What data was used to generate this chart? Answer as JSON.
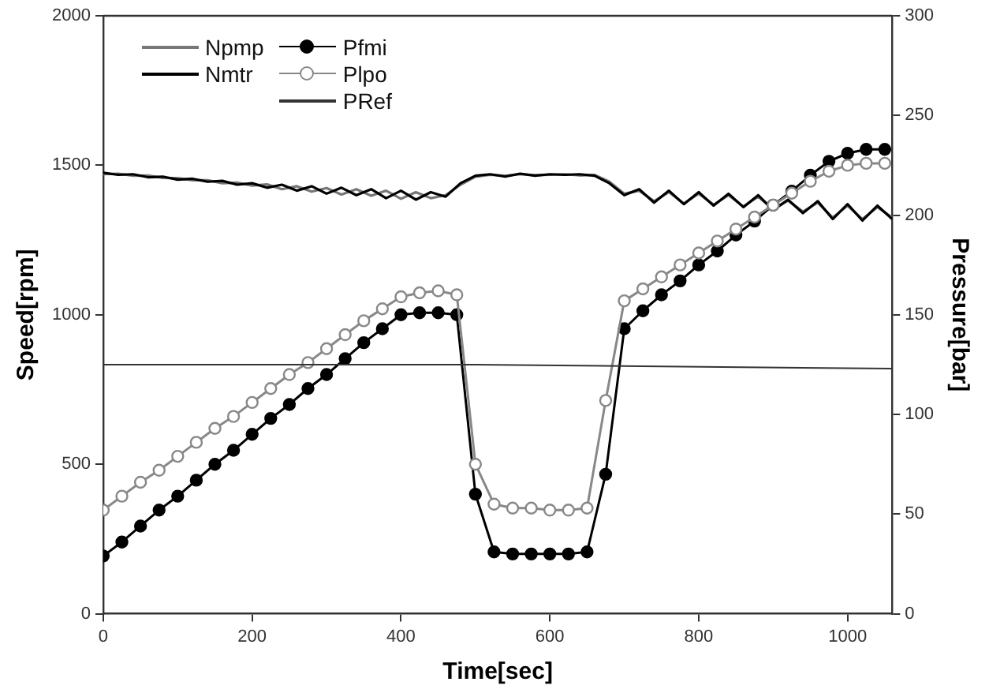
{
  "chart_data": {
    "type": "line",
    "xlabel": "Time[sec]",
    "ylabel": "Speed[rpm]",
    "y2label": "Pressure[bar]",
    "xlim": [
      0,
      1060
    ],
    "xticks": [
      0,
      200,
      400,
      600,
      800,
      1000
    ],
    "ylim": [
      0,
      2000
    ],
    "yticks": [
      0,
      500,
      1000,
      1500,
      2000
    ],
    "y2lim": [
      0,
      300
    ],
    "y2ticks": [
      0,
      50,
      100,
      150,
      200,
      250,
      300
    ],
    "legend": "top left",
    "grid": false,
    "series": [
      {
        "name": "Npmp",
        "color": "#777777",
        "marker": "none",
        "x": [
          0,
          20,
          40,
          60,
          80,
          100,
          120,
          140,
          160,
          180,
          200,
          220,
          240,
          260,
          280,
          300,
          320,
          340,
          360,
          380,
          400,
          420,
          440,
          460,
          480,
          500,
          520,
          540,
          560,
          580,
          600,
          620,
          640,
          660,
          680,
          700,
          720,
          740,
          760,
          780,
          800,
          820,
          840,
          860,
          880,
          900,
          920,
          940,
          960,
          980,
          1000,
          1020,
          1040,
          1060
        ],
        "values": [
          1470,
          1472,
          1465,
          1466,
          1458,
          1457,
          1450,
          1450,
          1440,
          1442,
          1432,
          1436,
          1420,
          1430,
          1412,
          1424,
          1402,
          1420,
          1398,
          1415,
          1388,
          1410,
          1390,
          1400,
          1435,
          1462,
          1468,
          1465,
          1470,
          1467,
          1468,
          1470,
          1466,
          1468,
          1445,
          1405,
          1415,
          1380,
          1410,
          1372,
          1405,
          1368,
          1400,
          1362,
          1395,
          1352,
          1382,
          1345,
          1375,
          1325,
          1365,
          1320,
          1360,
          1325
        ]
      },
      {
        "name": "Nmtr",
        "color": "#000000",
        "marker": "none",
        "x": [
          0,
          20,
          40,
          60,
          80,
          100,
          120,
          140,
          160,
          180,
          200,
          220,
          240,
          260,
          280,
          300,
          320,
          340,
          360,
          380,
          400,
          420,
          440,
          460,
          480,
          500,
          520,
          540,
          560,
          580,
          600,
          620,
          640,
          660,
          680,
          700,
          720,
          740,
          760,
          780,
          800,
          820,
          840,
          860,
          880,
          900,
          920,
          940,
          960,
          980,
          1000,
          1020,
          1040,
          1060
        ],
        "values": [
          1475,
          1468,
          1470,
          1460,
          1462,
          1452,
          1455,
          1445,
          1448,
          1435,
          1440,
          1425,
          1435,
          1415,
          1430,
          1405,
          1425,
          1400,
          1420,
          1390,
          1415,
          1385,
          1410,
          1395,
          1440,
          1465,
          1470,
          1462,
          1472,
          1465,
          1470,
          1468,
          1470,
          1465,
          1440,
          1400,
          1420,
          1375,
          1415,
          1370,
          1410,
          1365,
          1405,
          1360,
          1400,
          1350,
          1385,
          1340,
          1380,
          1320,
          1370,
          1315,
          1365,
          1320
        ]
      },
      {
        "name": "Pfmi",
        "color": "#000000",
        "marker": "circle",
        "axis": "y2",
        "x": [
          0,
          25,
          50,
          75,
          100,
          125,
          150,
          175,
          200,
          225,
          250,
          275,
          300,
          325,
          350,
          375,
          400,
          425,
          450,
          475,
          500,
          525,
          550,
          575,
          600,
          625,
          650,
          675,
          700,
          725,
          750,
          775,
          800,
          825,
          850,
          875,
          900,
          925,
          950,
          975,
          1000,
          1025,
          1050
        ],
        "values": [
          29,
          36,
          44,
          52,
          59,
          67,
          75,
          82,
          90,
          98,
          105,
          113,
          120,
          128,
          136,
          143,
          150,
          151,
          151,
          150,
          60,
          31,
          30,
          30,
          30,
          30,
          31,
          70,
          143,
          152,
          160,
          167,
          175,
          182,
          190,
          197,
          205,
          212,
          220,
          227,
          231,
          233,
          233
        ]
      },
      {
        "name": "Plpo",
        "color": "#888888",
        "marker": "circle",
        "axis": "y2",
        "x": [
          0,
          25,
          50,
          75,
          100,
          125,
          150,
          175,
          200,
          225,
          250,
          275,
          300,
          325,
          350,
          375,
          400,
          425,
          450,
          475,
          500,
          525,
          550,
          575,
          600,
          625,
          650,
          675,
          700,
          725,
          750,
          775,
          800,
          825,
          850,
          875,
          900,
          925,
          950,
          975,
          1000,
          1025,
          1050
        ],
        "values": [
          52,
          59,
          66,
          72,
          79,
          86,
          93,
          99,
          106,
          113,
          120,
          126,
          133,
          140,
          147,
          153,
          159,
          161,
          162,
          160,
          75,
          55,
          53,
          53,
          52,
          52,
          53,
          107,
          157,
          163,
          169,
          175,
          181,
          187,
          193,
          199,
          205,
          211,
          217,
          222,
          225,
          226,
          226
        ]
      },
      {
        "name": "PRef",
        "color": "#333333",
        "marker": "none",
        "axis": "y2",
        "x": [
          0,
          500,
          1060
        ],
        "values": [
          125,
          125,
          123
        ]
      }
    ]
  }
}
